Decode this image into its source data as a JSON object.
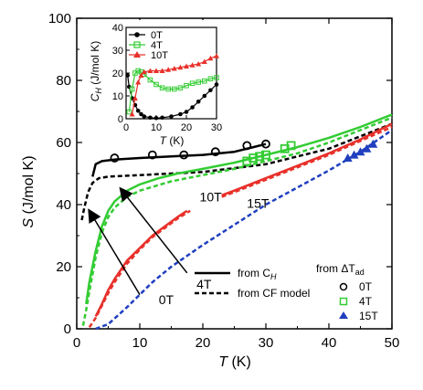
{
  "chart_data": [
    {
      "id": "main",
      "type": "line",
      "xlabel": "T",
      "xunit": "(K)",
      "ylabel": "S",
      "yunit": "(J/mol K)",
      "xlim": [
        0,
        50
      ],
      "ylim": [
        0,
        100
      ],
      "xticks": [
        0,
        10,
        20,
        30,
        40,
        50
      ],
      "yticks": [
        0,
        20,
        40,
        60,
        80,
        100
      ],
      "colors": {
        "0T": "#000000",
        "4T": "#33cc33",
        "10T": "#e8302a",
        "15T": "#1f3fbf"
      },
      "series": [
        {
          "name": "0T",
          "kind": "from C_H",
          "style": "solid",
          "color": "#000000",
          "x": [
            2.5,
            3,
            4,
            6,
            10,
            15,
            20,
            25,
            28,
            30
          ],
          "y": [
            49,
            53,
            54,
            54.5,
            55,
            55.5,
            56,
            57,
            58.5,
            59.5
          ]
        },
        {
          "name": "0T",
          "kind": "from CF model",
          "style": "dotted",
          "color": "#000000",
          "x": [
            0.8,
            1.2,
            1.8,
            2.5,
            3.5,
            5,
            10,
            20,
            30,
            40,
            50
          ],
          "y": [
            35,
            39,
            44,
            47,
            48.5,
            49,
            49.5,
            50.5,
            53,
            58,
            66
          ]
        },
        {
          "name": "4T",
          "kind": "from C_H",
          "style": "solid",
          "color": "#33cc33",
          "x": [
            1.5,
            2,
            3,
            4,
            5,
            6,
            8,
            10,
            13,
            16,
            20,
            25,
            28,
            30
          ],
          "y": [
            8,
            15,
            25,
            33,
            38,
            41,
            44.5,
            46.5,
            48.5,
            50,
            51.5,
            53.5,
            55,
            56
          ]
        },
        {
          "name": "4T",
          "kind": "from CF model",
          "style": "dotted",
          "color": "#33cc33",
          "x": [
            1,
            1.5,
            2,
            3,
            4,
            5,
            6,
            8,
            10,
            15,
            20,
            25,
            30,
            35,
            40,
            45,
            50
          ],
          "y": [
            1,
            6,
            12,
            23,
            31,
            36,
            39,
            42.5,
            44.5,
            47.5,
            49.5,
            51.5,
            54,
            56.5,
            60,
            64,
            68
          ]
        },
        {
          "name": "4T",
          "kind": "from ΔT_ad (continuation)",
          "style": "solid",
          "color": "#33cc33",
          "x": [
            30,
            35,
            40,
            45,
            50
          ],
          "y": [
            56,
            58.5,
            61.5,
            65,
            69
          ]
        },
        {
          "name": "10T",
          "kind": "from C_H",
          "style": "solid",
          "color": "#e8302a",
          "x": [
            3,
            4,
            5,
            6,
            8,
            10,
            12,
            14,
            16,
            17.5
          ],
          "y": [
            4,
            8,
            12.5,
            16,
            22,
            26,
            30,
            33,
            36,
            38
          ]
        },
        {
          "name": "10T",
          "kind": "from CF model",
          "style": "dotted",
          "color": "#e8302a",
          "x": [
            2,
            3,
            4,
            5,
            6,
            8,
            10,
            12,
            14,
            16,
            18
          ],
          "y": [
            0.5,
            3.5,
            7.5,
            11.5,
            15,
            21,
            25.5,
            29.5,
            32.5,
            35.5,
            38
          ]
        },
        {
          "name": "10T",
          "kind": "from C_H (high T)",
          "style": "solid",
          "color": "#e8302a",
          "x": [
            23,
            25,
            30,
            35,
            40,
            45,
            50
          ],
          "y": [
            43,
            44.5,
            48.5,
            52.5,
            56.5,
            61,
            66
          ]
        },
        {
          "name": "10T",
          "kind": "from CF model (high T)",
          "style": "dotted",
          "color": "#e8302a",
          "x": [
            23,
            25,
            30,
            35,
            40,
            45,
            50
          ],
          "y": [
            42.5,
            44,
            48,
            52,
            56,
            60.5,
            65
          ]
        },
        {
          "name": "15T",
          "kind": "from CF model",
          "style": "dotted",
          "color": "#1f3fbf",
          "x": [
            3,
            5,
            8,
            10,
            12,
            15,
            20,
            25,
            30,
            35,
            40,
            45,
            50
          ],
          "y": [
            0,
            1.5,
            7,
            11,
            15,
            20,
            27,
            33.5,
            40,
            45.5,
            51,
            57,
            64
          ]
        }
      ],
      "markers": [
        {
          "name": "0T",
          "source": "from ΔT_ad",
          "shape": "circle",
          "color": "#000000",
          "x": [
            6,
            12,
            17,
            22,
            27,
            30
          ],
          "y": [
            55,
            56,
            56,
            57,
            59,
            59.5
          ]
        },
        {
          "name": "4T",
          "source": "from ΔT_ad",
          "shape": "square",
          "color": "#33cc33",
          "x": [
            27,
            28,
            29,
            30,
            33,
            34
          ],
          "y": [
            54,
            55,
            55.5,
            56,
            58,
            59
          ]
        },
        {
          "name": "15T",
          "source": "from ΔT_ad",
          "shape": "triangle",
          "color": "#1f3fbf",
          "x": [
            43,
            44,
            45,
            46,
            47
          ],
          "y": [
            55,
            56,
            57,
            58,
            59.5
          ]
        }
      ],
      "arrows": [
        {
          "label": "0T",
          "from": [
            10,
            11
          ],
          "to": [
            2,
            38
          ]
        },
        {
          "label": "4T",
          "from": [
            17.5,
            18
          ],
          "to": [
            7,
            45
          ]
        }
      ],
      "labels": [
        {
          "text": "0T",
          "x": 13,
          "y": 8
        },
        {
          "text": "4T",
          "x": 19,
          "y": 13
        },
        {
          "text": "10T",
          "x": 19.5,
          "y": 41
        },
        {
          "text": "15T",
          "x": 27,
          "y": 39
        }
      ],
      "legend": {
        "position": "bottom-right",
        "lines": [
          {
            "label": "from C",
            "sub": "H",
            "style": "solid"
          },
          {
            "label": "from CF model",
            "style": "dotted"
          }
        ],
        "marker_title": "from ΔT",
        "marker_title_sub": "ad",
        "marker_items": [
          {
            "label": "0T",
            "shape": "circle",
            "color": "#000000"
          },
          {
            "label": "4T",
            "shape": "square",
            "color": "#33cc33"
          },
          {
            "label": "15T",
            "shape": "triangle",
            "color": "#1f3fbf"
          }
        ]
      }
    },
    {
      "id": "inset",
      "type": "line",
      "xlabel": "T",
      "xunit": "(K)",
      "ylabel": "C",
      "ylabel_sub": "H",
      "yunit": "(J/mol K)",
      "xlim": [
        0,
        30
      ],
      "ylim": [
        0,
        40
      ],
      "xticks": [
        0,
        10,
        20,
        30
      ],
      "yticks": [
        0,
        10,
        20,
        30,
        40
      ],
      "series": [
        {
          "name": "0T",
          "shape": "circle",
          "color": "#000000",
          "x": [
            0.5,
            1,
            2,
            3,
            4,
            5,
            6,
            8,
            10,
            12,
            15,
            18,
            20,
            22,
            24,
            26,
            28,
            30
          ],
          "y": [
            19,
            14,
            9,
            6,
            3.5,
            2,
            1,
            0.5,
            0.3,
            0.5,
            1,
            2,
            3,
            5,
            7.5,
            10,
            12.5,
            15
          ]
        },
        {
          "name": "4T",
          "shape": "square",
          "color": "#33cc33",
          "x": [
            1,
            2,
            3,
            4,
            5,
            6,
            8,
            10,
            12,
            14,
            16,
            18,
            20,
            22,
            24,
            26,
            28,
            30
          ],
          "y": [
            3,
            13,
            20,
            21,
            20.5,
            19.5,
            17,
            15,
            13.5,
            13,
            13,
            13.5,
            14.5,
            15.5,
            16,
            16.5,
            17.5,
            18
          ]
        },
        {
          "name": "10T",
          "shape": "triangle",
          "color": "#e8302a",
          "x": [
            2,
            3,
            4,
            5,
            6,
            8,
            10,
            12,
            14,
            16,
            18,
            20,
            22,
            24,
            26,
            28,
            30
          ],
          "y": [
            2,
            9,
            16,
            19,
            20.5,
            21,
            21,
            21,
            21.5,
            22,
            22.5,
            23,
            23.5,
            24,
            25,
            26.5,
            27.5
          ]
        }
      ],
      "legend": {
        "position": "top-left",
        "items": [
          {
            "label": "0T",
            "shape": "circle",
            "color": "#000000"
          },
          {
            "label": "4T",
            "shape": "square",
            "color": "#33cc33"
          },
          {
            "label": "10T",
            "shape": "triangle",
            "color": "#e8302a"
          }
        ]
      }
    }
  ]
}
